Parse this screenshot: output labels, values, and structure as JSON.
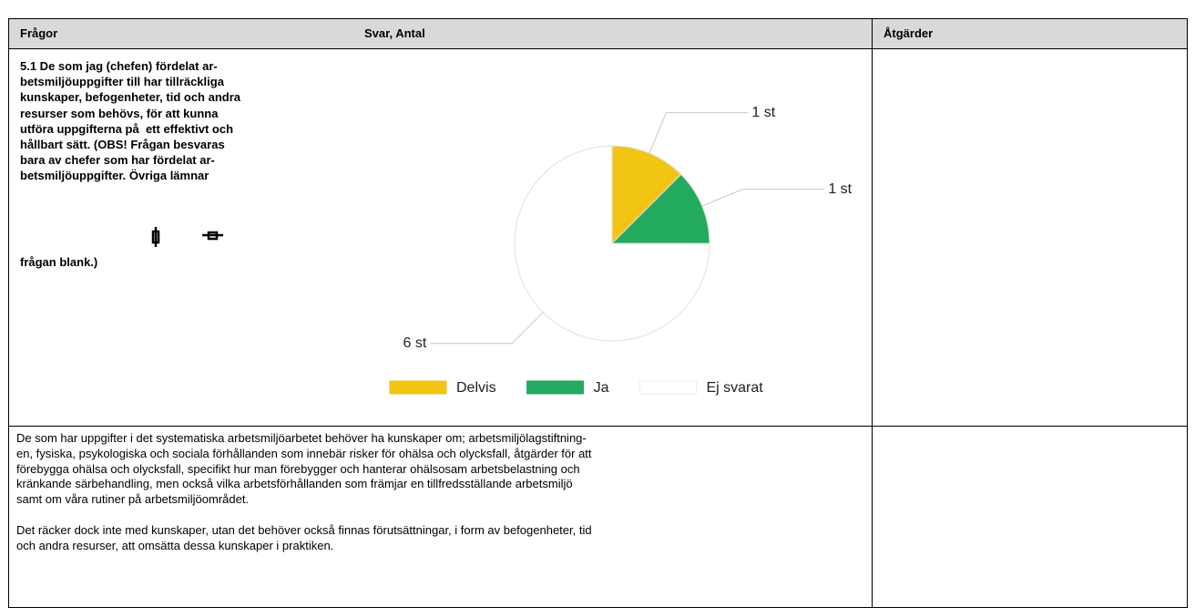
{
  "table": {
    "headers": [
      "Frågor",
      "Svar, Antal",
      "Åtgärder"
    ]
  },
  "question": {
    "lines": [
      "5.1 De som jag (chefen) fördelat ar-",
      "betsmiljöuppgifter till har tillräckliga",
      "kunskaper, befogenheter, tid och andra",
      "resurser som behövs, för att kunna",
      "utföra uppgifterna på  ett effektivt och",
      "hållbart sätt. (OBS! Frågan besvaras",
      "bara av chefer som har fördelat ar-",
      "betsmiljöuppgifter. Övriga lämnar",
      "frågan blank.)"
    ]
  },
  "chart_data": {
    "type": "pie",
    "categories": [
      "Delvis",
      "Ja",
      "Ej svarat"
    ],
    "values": [
      1,
      1,
      6
    ],
    "value_labels": [
      "1 st",
      "1 st",
      "6 st"
    ],
    "colors": [
      "#f2c414",
      "#22aa5e",
      "#ffffff"
    ]
  },
  "info": {
    "paragraphs": [
      [
        "De som har uppgifter i det systematiska arbetsmiljöarbetet behöver ha kunskaper om; arbetsmiljölagstiftning-",
        "en, fysiska, psykologiska och sociala förhållanden som innebär risker för ohälsa och olycksfall, åtgärder för att",
        "förebygga ohälsa och olycksfall, specifikt hur man förebygger och hanterar ohälsosam arbetsbelastning och",
        "kränkande särbehandling, men också vilka arbetsförhållanden som främjar en tillfredsställande arbetsmiljö",
        "samt om våra rutiner på arbetsmiljöområdet."
      ],
      [
        "Det räcker dock inte med kunskaper, utan det behöver också finnas förutsättningar, i form av befogenheter, tid",
        "och andra resurser, att omsätta dessa kunskaper i praktiken."
      ]
    ]
  }
}
